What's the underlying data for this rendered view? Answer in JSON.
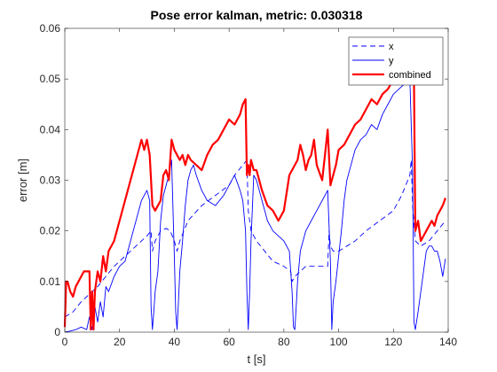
{
  "chart_data": {
    "type": "line",
    "title": "Pose error kalman, metric: 0.030318",
    "xlabel": "t [s]",
    "ylabel": "error [m]",
    "xlim": [
      0,
      140
    ],
    "ylim": [
      0,
      0.06
    ],
    "xticks": [
      0,
      20,
      40,
      60,
      80,
      100,
      120,
      140
    ],
    "yticks": [
      0,
      0.01,
      0.02,
      0.03,
      0.04,
      0.05,
      0.06
    ],
    "xtick_labels": [
      "0",
      "20",
      "40",
      "60",
      "80",
      "100",
      "120",
      "140"
    ],
    "ytick_labels": [
      "0",
      "0.01",
      "0.02",
      "0.03",
      "0.04",
      "0.05",
      "0.06"
    ],
    "grid": false,
    "legend_position": "top-right",
    "series": [
      {
        "name": "x",
        "color": "#0000ff",
        "style": "dashed",
        "x": [
          0,
          3,
          6,
          8,
          10,
          12,
          15,
          18,
          22,
          26,
          30,
          31.5,
          32,
          33,
          35,
          37,
          38.5,
          40,
          41,
          42,
          45,
          50,
          55,
          60,
          62,
          65,
          66.5,
          67,
          68,
          70,
          73,
          76,
          80,
          82.5,
          83,
          84,
          86,
          88,
          92,
          96,
          96.5,
          97,
          98,
          100,
          103,
          106,
          110,
          115,
          120,
          123,
          126,
          126.5,
          127,
          128,
          130,
          133,
          136,
          139
        ],
        "y": [
          0.003,
          0.004,
          0.006,
          0.007,
          0.008,
          0.009,
          0.011,
          0.013,
          0.015,
          0.017,
          0.019,
          0.02,
          0.016,
          0.018,
          0.02,
          0.0205,
          0.02,
          0.018,
          0.016,
          0.018,
          0.022,
          0.025,
          0.027,
          0.029,
          0.031,
          0.033,
          0.034,
          0.024,
          0.02,
          0.018,
          0.016,
          0.014,
          0.013,
          0.012,
          0.01,
          0.011,
          0.012,
          0.013,
          0.013,
          0.013,
          0.02,
          0.017,
          0.016,
          0.016,
          0.017,
          0.018,
          0.02,
          0.022,
          0.024,
          0.027,
          0.031,
          0.034,
          0.025,
          0.018,
          0.017,
          0.018,
          0.02,
          0.022
        ]
      },
      {
        "name": "y",
        "color": "#0000ff",
        "style": "solid",
        "x": [
          0,
          2,
          4,
          6,
          8,
          9,
          10,
          11,
          12,
          13,
          14,
          15,
          16,
          18,
          20,
          22,
          24,
          26,
          28,
          30,
          31,
          31.5,
          32,
          32.5,
          33,
          34,
          35,
          36,
          37,
          38,
          39,
          40,
          40.5,
          41,
          41.5,
          42,
          43,
          44,
          45,
          46,
          47,
          48,
          50,
          52,
          55,
          58,
          60,
          62,
          64,
          65,
          66,
          66.5,
          67,
          67.5,
          68,
          69,
          70,
          71,
          72,
          73,
          74,
          76,
          80,
          82,
          83,
          83.5,
          84,
          84.5,
          85,
          86,
          87,
          88,
          90,
          92,
          94,
          96,
          97,
          97.5,
          98,
          99,
          100,
          101,
          102,
          103,
          104,
          106,
          108,
          110,
          112,
          114,
          116,
          118,
          120,
          122,
          124,
          126,
          127,
          127.5,
          128,
          129,
          130,
          131,
          132,
          133,
          134,
          135,
          136,
          137,
          138,
          139
        ],
        "y": [
          0.0,
          0.0002,
          0.0005,
          0.001,
          0.0005,
          0.003,
          0.0005,
          0.005,
          0.002,
          0.006,
          0.003,
          0.009,
          0.008,
          0.011,
          0.013,
          0.014,
          0.018,
          0.022,
          0.026,
          0.028,
          0.026,
          0.005,
          0.0005,
          0.004,
          0.008,
          0.012,
          0.022,
          0.027,
          0.029,
          0.031,
          0.034,
          0.015,
          0.004,
          0.0005,
          0.006,
          0.012,
          0.018,
          0.025,
          0.03,
          0.032,
          0.033,
          0.031,
          0.028,
          0.026,
          0.025,
          0.027,
          0.029,
          0.031,
          0.028,
          0.026,
          0.02,
          0.008,
          0.0005,
          0.008,
          0.018,
          0.031,
          0.03,
          0.028,
          0.026,
          0.024,
          0.022,
          0.02,
          0.018,
          0.016,
          0.008,
          0.001,
          0.0005,
          0.005,
          0.01,
          0.016,
          0.018,
          0.02,
          0.022,
          0.024,
          0.026,
          0.028,
          0.014,
          0.0005,
          0.006,
          0.01,
          0.015,
          0.02,
          0.026,
          0.03,
          0.032,
          0.036,
          0.038,
          0.039,
          0.041,
          0.04,
          0.043,
          0.045,
          0.047,
          0.048,
          0.049,
          0.05,
          0.032,
          0.002,
          0.0005,
          0.004,
          0.008,
          0.012,
          0.016,
          0.017,
          0.017,
          0.016,
          0.016,
          0.014,
          0.011,
          0.0145
        ]
      },
      {
        "name": "combined",
        "color": "#ff0000",
        "style": "solid",
        "x": [
          0,
          0.5,
          1,
          2,
          3,
          4,
          5,
          6,
          7,
          8,
          9,
          9.5,
          10,
          10.5,
          11,
          12,
          13,
          14,
          15,
          16,
          18,
          20,
          22,
          24,
          26,
          28,
          29,
          30,
          31,
          32,
          33,
          34,
          35,
          36,
          37,
          38,
          39,
          40,
          41,
          42,
          43,
          44,
          45,
          46,
          48,
          50,
          52,
          54,
          56,
          58,
          60,
          62,
          64,
          65,
          66,
          66.5,
          67,
          67.5,
          68,
          69,
          70,
          72,
          74,
          76,
          78,
          80,
          82,
          84,
          85,
          86,
          87,
          88,
          89,
          90,
          91,
          92,
          94,
          96,
          97,
          98,
          99,
          100,
          102,
          104,
          106,
          108,
          110,
          112,
          114,
          116,
          118,
          120,
          122,
          124,
          125,
          126,
          127,
          127.5,
          128,
          129,
          130,
          131,
          132,
          133,
          134,
          135,
          136,
          137,
          138,
          139
        ],
        "y": [
          0.001,
          0.01,
          0.01,
          0.008,
          0.007,
          0.009,
          0.01,
          0.011,
          0.012,
          0.012,
          0.012,
          0.0005,
          0.008,
          0.0005,
          0.008,
          0.012,
          0.01,
          0.015,
          0.012,
          0.016,
          0.018,
          0.022,
          0.026,
          0.03,
          0.034,
          0.038,
          0.036,
          0.038,
          0.035,
          0.025,
          0.024,
          0.025,
          0.026,
          0.031,
          0.032,
          0.03,
          0.038,
          0.036,
          0.035,
          0.034,
          0.035,
          0.033,
          0.035,
          0.034,
          0.033,
          0.032,
          0.035,
          0.037,
          0.038,
          0.04,
          0.042,
          0.041,
          0.043,
          0.045,
          0.046,
          0.031,
          0.033,
          0.031,
          0.034,
          0.032,
          0.032,
          0.028,
          0.025,
          0.024,
          0.022,
          0.024,
          0.031,
          0.033,
          0.034,
          0.037,
          0.035,
          0.032,
          0.034,
          0.035,
          0.038,
          0.033,
          0.03,
          0.04,
          0.029,
          0.031,
          0.033,
          0.036,
          0.037,
          0.039,
          0.041,
          0.042,
          0.044,
          0.046,
          0.045,
          0.047,
          0.048,
          0.05,
          0.051,
          0.053,
          0.056,
          0.057,
          0.058,
          0.05,
          0.02,
          0.022,
          0.018,
          0.019,
          0.02,
          0.021,
          0.022,
          0.021,
          0.023,
          0.024,
          0.025,
          0.0265
        ]
      }
    ]
  }
}
